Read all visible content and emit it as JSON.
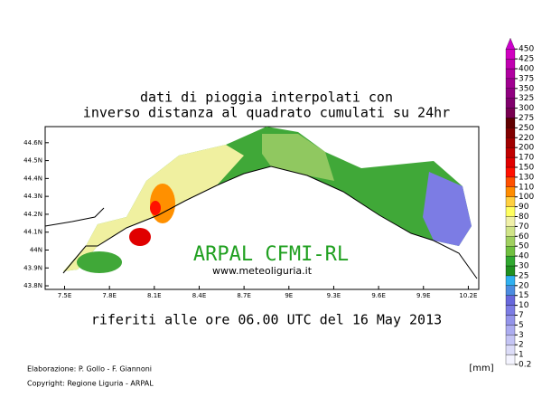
{
  "header": {
    "title_line1": "dati di pioggia interpolati con",
    "title_line2": "inverso distanza al quadrato cumulati su 24hr",
    "subtitle": "riferiti alle ore 06.00 UTC del 16 May 2013"
  },
  "map": {
    "overlay_title": "ARPAL CFMI-RL",
    "overlay_url": "www.meteoliguria.it",
    "lonlim": [
      7.37,
      10.27
    ],
    "latlim": [
      43.78,
      44.69
    ],
    "lon_ticks": [
      {
        "value": 7.5,
        "label": "7.5E"
      },
      {
        "value": 7.8,
        "label": "7.8E"
      },
      {
        "value": 8.1,
        "label": "8.1E"
      },
      {
        "value": 8.4,
        "label": "8.4E"
      },
      {
        "value": 8.7,
        "label": "8.7E"
      },
      {
        "value": 9.0,
        "label": "9E"
      },
      {
        "value": 9.3,
        "label": "9.3E"
      },
      {
        "value": 9.6,
        "label": "9.6E"
      },
      {
        "value": 9.9,
        "label": "9.9E"
      },
      {
        "value": 10.2,
        "label": "10.2E"
      }
    ],
    "lat_ticks": [
      {
        "value": 43.8,
        "label": "43.8N"
      },
      {
        "value": 43.9,
        "label": "43.9N"
      },
      {
        "value": 44.0,
        "label": "44N"
      },
      {
        "value": 44.1,
        "label": "44.1N"
      },
      {
        "value": 44.2,
        "label": "44.2N"
      },
      {
        "value": 44.3,
        "label": "44.3N"
      },
      {
        "value": 44.4,
        "label": "44.4N"
      },
      {
        "value": 44.5,
        "label": "44.5N"
      },
      {
        "value": 44.6,
        "label": "44.6N"
      }
    ]
  },
  "colorbar": {
    "unit": "[mm]",
    "labels": [
      "0.2",
      "1",
      "2",
      "3",
      "5",
      "7",
      "10",
      "15",
      "20",
      "25",
      "30",
      "40",
      "50",
      "60",
      "70",
      "80",
      "90",
      "100",
      "110",
      "130",
      "150",
      "170",
      "200",
      "220",
      "250",
      "275",
      "300",
      "325",
      "350",
      "375",
      "400",
      "425",
      "450"
    ],
    "colors": [
      "#f4f4ff",
      "#dcdcf8",
      "#c4c4f4",
      "#acacf0",
      "#9494ea",
      "#7c7ce4",
      "#6868dc",
      "#4c8ce0",
      "#30b0f0",
      "#209020",
      "#30a830",
      "#70c040",
      "#a0d060",
      "#d0e488",
      "#f0f0a8",
      "#ffff60",
      "#ffd040",
      "#ff8c00",
      "#ff5000",
      "#ff1000",
      "#e00000",
      "#c00000",
      "#a00000",
      "#800000",
      "#600000",
      "#780050",
      "#80006c",
      "#900080",
      "#a00090",
      "#b000a0",
      "#c000b0",
      "#d000c0"
    ],
    "top_color": "#cc00cc"
  },
  "footer": {
    "credits": "Elaborazione: P. Gollo - F. Giannoni",
    "copyright": "Copyright: Regione Liguria - ARPAL"
  }
}
